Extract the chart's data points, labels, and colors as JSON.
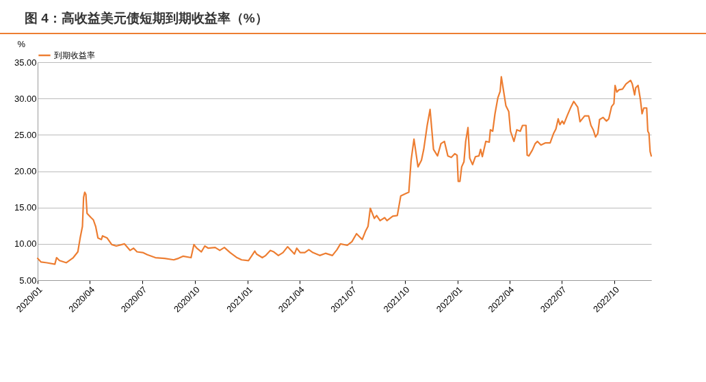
{
  "chart_data": {
    "type": "line",
    "title": "图 4：高收益美元债短期到期收益率（%）",
    "ylabel": "%",
    "x": [
      "2020-01-01",
      "2020-01-07",
      "2020-01-17",
      "2020-01-31",
      "2020-02-03",
      "2020-02-08",
      "2020-02-20",
      "2020-03-03",
      "2020-03-11",
      "2020-03-15",
      "2020-03-19",
      "2020-03-21",
      "2020-03-23",
      "2020-03-25",
      "2020-03-27",
      "2020-04-03",
      "2020-04-07",
      "2020-04-11",
      "2020-04-15",
      "2020-04-21",
      "2020-04-23",
      "2020-05-01",
      "2020-05-09",
      "2020-05-17",
      "2020-05-31",
      "2020-06-10",
      "2020-06-16",
      "2020-06-22",
      "2020-07-02",
      "2020-07-10",
      "2020-07-24",
      "2020-08-09",
      "2020-08-25",
      "2020-09-02",
      "2020-09-10",
      "2020-09-24",
      "2020-09-29",
      "2020-10-04",
      "2020-10-12",
      "2020-10-18",
      "2020-10-24",
      "2020-11-05",
      "2020-11-13",
      "2020-11-21",
      "2020-12-01",
      "2020-12-13",
      "2020-12-21",
      "2021-01-02",
      "2021-01-08",
      "2021-01-13",
      "2021-01-16",
      "2021-01-26",
      "2021-02-01",
      "2021-02-09",
      "2021-02-15",
      "2021-02-23",
      "2021-03-03",
      "2021-03-11",
      "2021-03-23",
      "2021-03-27",
      "2021-04-02",
      "2021-04-10",
      "2021-04-17",
      "2021-04-24",
      "2021-05-06",
      "2021-05-16",
      "2021-05-28",
      "2021-06-05",
      "2021-06-11",
      "2021-06-23",
      "2021-07-01",
      "2021-07-09",
      "2021-07-19",
      "2021-07-25",
      "2021-07-29",
      "2021-08-02",
      "2021-08-09",
      "2021-08-13",
      "2021-08-19",
      "2021-08-27",
      "2021-08-31",
      "2021-09-10",
      "2021-09-18",
      "2021-09-24",
      "2021-10-02",
      "2021-10-08",
      "2021-10-12",
      "2021-10-17",
      "2021-10-24",
      "2021-10-30",
      "2021-11-03",
      "2021-11-09",
      "2021-11-14",
      "2021-11-20",
      "2021-11-27",
      "2021-12-03",
      "2021-12-09",
      "2021-12-15",
      "2021-12-21",
      "2021-12-27",
      "2021-12-31",
      "2022-01-02",
      "2022-01-05",
      "2022-01-08",
      "2022-01-12",
      "2022-01-15",
      "2022-01-19",
      "2022-01-22",
      "2022-01-27",
      "2022-02-01",
      "2022-02-07",
      "2022-02-10",
      "2022-02-13",
      "2022-02-19",
      "2022-02-25",
      "2022-02-27",
      "2022-03-03",
      "2022-03-07",
      "2022-03-12",
      "2022-03-16",
      "2022-03-18",
      "2022-03-22",
      "2022-03-26",
      "2022-03-31",
      "2022-04-03",
      "2022-04-09",
      "2022-04-14",
      "2022-04-20",
      "2022-04-24",
      "2022-04-30",
      "2022-05-02",
      "2022-05-05",
      "2022-05-11",
      "2022-05-16",
      "2022-05-20",
      "2022-05-26",
      "2022-06-03",
      "2022-06-11",
      "2022-06-17",
      "2022-06-21",
      "2022-06-25",
      "2022-06-28",
      "2022-07-02",
      "2022-07-05",
      "2022-07-11",
      "2022-07-17",
      "2022-07-22",
      "2022-07-29",
      "2022-08-02",
      "2022-08-10",
      "2022-08-17",
      "2022-08-21",
      "2022-08-25",
      "2022-08-29",
      "2022-09-02",
      "2022-09-05",
      "2022-09-11",
      "2022-09-17",
      "2022-09-21",
      "2022-09-26",
      "2022-09-30",
      "2022-10-02",
      "2022-10-05",
      "2022-10-09",
      "2022-10-15",
      "2022-10-21",
      "2022-10-29",
      "2022-11-01",
      "2022-11-05",
      "2022-11-07",
      "2022-11-11",
      "2022-11-15",
      "2022-11-18",
      "2022-11-21",
      "2022-11-26",
      "2022-11-28",
      "2022-11-30",
      "2022-12-02",
      "2022-12-04"
    ],
    "series": [
      {
        "name": "到期收益率",
        "color": "#ed7d31",
        "values": [
          8.0,
          7.5,
          7.4,
          7.2,
          8.1,
          7.7,
          7.4,
          8.1,
          8.9,
          10.8,
          12.4,
          16.4,
          17.1,
          16.8,
          14.2,
          13.6,
          13.3,
          12.4,
          10.8,
          10.6,
          11.1,
          10.8,
          9.9,
          9.7,
          10.0,
          9.1,
          9.4,
          8.9,
          8.8,
          8.5,
          8.1,
          8.0,
          7.8,
          8.0,
          8.3,
          8.1,
          9.9,
          9.4,
          8.9,
          9.7,
          9.4,
          9.5,
          9.1,
          9.5,
          8.8,
          8.1,
          7.8,
          7.7,
          8.4,
          9.0,
          8.6,
          8.1,
          8.4,
          9.1,
          8.9,
          8.4,
          8.8,
          9.6,
          8.6,
          9.4,
          8.8,
          8.8,
          9.2,
          8.8,
          8.4,
          8.7,
          8.4,
          9.2,
          10.0,
          9.8,
          10.3,
          11.4,
          10.6,
          11.8,
          12.4,
          14.9,
          13.5,
          13.9,
          13.2,
          13.6,
          13.2,
          13.8,
          13.9,
          16.6,
          16.9,
          17.1,
          21.5,
          24.4,
          20.6,
          21.5,
          23.0,
          26.3,
          28.5,
          23.0,
          22.1,
          23.8,
          24.1,
          22.1,
          21.9,
          22.4,
          22.2,
          18.6,
          18.6,
          20.6,
          21.3,
          24.1,
          26.0,
          21.8,
          20.9,
          22.0,
          22.1,
          23.0,
          22.0,
          24.1,
          24.0,
          25.7,
          25.5,
          27.9,
          30.1,
          31.0,
          33.0,
          31.0,
          29.0,
          28.2,
          25.5,
          24.1,
          25.7,
          25.5,
          26.3,
          26.3,
          22.2,
          22.1,
          22.9,
          23.8,
          24.1,
          23.6,
          23.9,
          23.9,
          25.2,
          25.8,
          27.2,
          26.4,
          26.9,
          26.5,
          27.7,
          28.8,
          29.6,
          28.8,
          26.8,
          27.6,
          27.6,
          26.3,
          25.7,
          24.7,
          25.2,
          27.1,
          27.4,
          26.9,
          27.2,
          28.9,
          29.3,
          31.8,
          30.9,
          31.2,
          31.3,
          32.0,
          32.5,
          32.0,
          30.5,
          31.5,
          31.8,
          29.9,
          27.9,
          28.7,
          28.7,
          25.5,
          25.2,
          22.7,
          22.1
        ]
      }
    ],
    "xlim": [
      "2020-01-01",
      "2022-12-04"
    ],
    "xticks": [
      {
        "value": "2020-01-01",
        "label": "2020/01"
      },
      {
        "value": "2020-04-01",
        "label": "2020/04"
      },
      {
        "value": "2020-07-01",
        "label": "2020/07"
      },
      {
        "value": "2020-10-01",
        "label": "2020/10"
      },
      {
        "value": "2021-01-01",
        "label": "2021/01"
      },
      {
        "value": "2021-04-01",
        "label": "2021/04"
      },
      {
        "value": "2021-07-01",
        "label": "2021/07"
      },
      {
        "value": "2021-10-01",
        "label": "2021/10"
      },
      {
        "value": "2022-01-01",
        "label": "2022/01"
      },
      {
        "value": "2022-04-01",
        "label": "2022/04"
      },
      {
        "value": "2022-07-01",
        "label": "2022/07"
      },
      {
        "value": "2022-10-01",
        "label": "2022/10"
      }
    ],
    "ylim": [
      5,
      35
    ],
    "yticks": [
      {
        "value": 5,
        "label": "5.00"
      },
      {
        "value": 10,
        "label": "10.00"
      },
      {
        "value": 15,
        "label": "15.00"
      },
      {
        "value": 20,
        "label": "20.00"
      },
      {
        "value": 25,
        "label": "25.00"
      },
      {
        "value": 30,
        "label": "30.00"
      },
      {
        "value": 35,
        "label": "35.00"
      }
    ],
    "grid": "y",
    "legend": "top",
    "marker": "none",
    "line_style": "solid"
  }
}
